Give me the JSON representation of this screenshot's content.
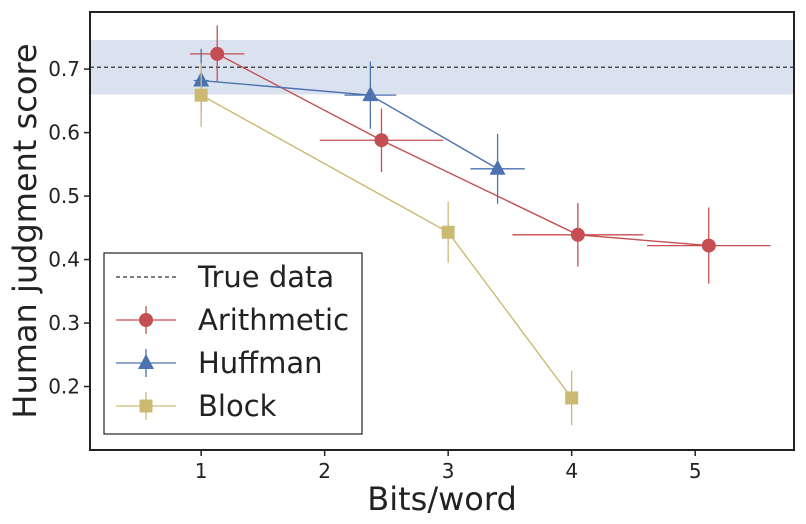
{
  "chart_data": {
    "type": "line",
    "xlabel": "Bits/word",
    "ylabel": "Human judgment score",
    "xlim": [
      0.1,
      5.8
    ],
    "ylim": [
      0.1,
      0.79
    ],
    "xticks": [
      "1",
      "2",
      "3",
      "4",
      "5"
    ],
    "yticks": [
      "0.2",
      "0.3",
      "0.4",
      "0.5",
      "0.6",
      "0.7"
    ],
    "grid": false,
    "legend_position": "lower-left",
    "reference": {
      "name": "True data",
      "value": 0.703,
      "band": [
        0.66,
        0.746
      ],
      "band_color": "#dbe2ef",
      "line_color": "#333333"
    },
    "series": [
      {
        "name": "Arithmetic",
        "color": "#c44e52",
        "marker": "circle",
        "points": [
          {
            "x": 1.13,
            "y": 0.724,
            "xerr": 0.22,
            "yerr": 0.045
          },
          {
            "x": 2.46,
            "y": 0.588,
            "xerr": 0.5,
            "yerr": 0.05
          },
          {
            "x": 4.05,
            "y": 0.439,
            "xerr": 0.53,
            "yerr": 0.05
          },
          {
            "x": 5.11,
            "y": 0.422,
            "xerr": 0.5,
            "yerr": 0.06
          }
        ]
      },
      {
        "name": "Huffman",
        "color": "#4c72b0",
        "marker": "triangle",
        "points": [
          {
            "x": 1.0,
            "y": 0.682,
            "xerr": 0.06,
            "yerr": 0.05
          },
          {
            "x": 2.37,
            "y": 0.659,
            "xerr": 0.21,
            "yerr": 0.053
          },
          {
            "x": 3.4,
            "y": 0.543,
            "xerr": 0.22,
            "yerr": 0.055
          }
        ]
      },
      {
        "name": "Block",
        "color": "#ccb974",
        "marker": "square",
        "points": [
          {
            "x": 1.0,
            "y": 0.659,
            "xerr": 0.0,
            "yerr": 0.05
          },
          {
            "x": 3.0,
            "y": 0.443,
            "xerr": 0.0,
            "yerr": 0.048
          },
          {
            "x": 4.0,
            "y": 0.182,
            "xerr": 0.0,
            "yerr": 0.043
          }
        ]
      }
    ]
  }
}
